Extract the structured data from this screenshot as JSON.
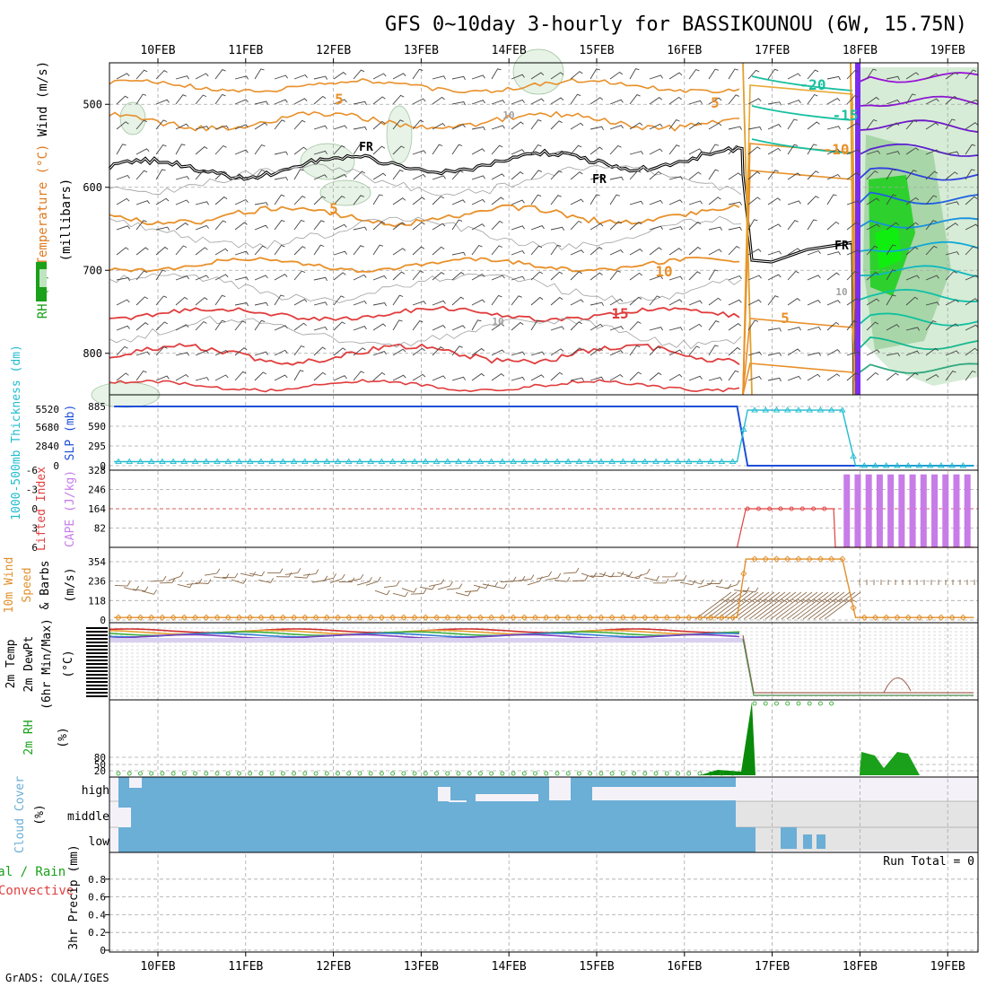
{
  "title": "GFS 0~10day 3-hourly for BASSIKOUNOU (6W, 15.75N)",
  "credit": "GrADS: COLA/IGES",
  "dates": [
    "10FEB",
    "11FEB",
    "12FEB",
    "13FEB",
    "14FEB",
    "15FEB",
    "16FEB",
    "17FEB",
    "18FEB",
    "19FEB"
  ],
  "colors": {
    "background": "#ffffff",
    "grid": "#a8a8a8",
    "cloud": "#6baed6",
    "cloud_clear": "#f4f2f8",
    "cloud_gray": "#e4e4e4",
    "cape": "#c77ce8",
    "slp": "#1e4fd8",
    "thickness": "#22bcd0",
    "lifted_index": "#e04040",
    "wind_speed": "#e0902c",
    "barb": "#8c6a48",
    "rh_green": "#1aa01a",
    "temp_warm": "#e8902a",
    "temp_hot": "#e03c3c",
    "temp_cold": "#18c0a0",
    "freezing": "#000000"
  },
  "chart_data": [
    {
      "type": "line",
      "panel": "upper-air",
      "ylabel_parts": [
        "RH (%)",
        "Temperature (°C)",
        "Wind (m/s)"
      ],
      "ylabel2": "(millibars)",
      "yticks": [
        500,
        600,
        700,
        800
      ],
      "ylim": [
        450,
        850
      ],
      "inverted": true,
      "contour_labels": [
        "FR",
        "FR",
        "FR",
        "5",
        "5",
        "5",
        "5",
        "10",
        "15",
        "-20",
        "-15",
        "-10",
        "10",
        "10",
        "10"
      ]
    },
    {
      "type": "line",
      "panel": "slp-thickness",
      "ylabel_thickness": "1000-500mb Thickness (dm)",
      "ylabel_slp": "SLP (mb)",
      "thickness_ticks": [
        "5520",
        "5680",
        "2840",
        "0"
      ],
      "slp_ticks": [
        "885",
        "590",
        "295",
        "0"
      ],
      "slp_ylim": [
        0,
        885
      ],
      "series": [
        {
          "name": "SLP (mb)",
          "x_days": [
            -0.5,
            6.6,
            6.72,
            9.3
          ],
          "values": [
            885,
            885,
            0,
            0
          ]
        },
        {
          "name": "1000-500mb Thickness (dm)",
          "x_days": [
            -0.5,
            6.6,
            6.72,
            7.8,
            7.95,
            9.3
          ],
          "values": [
            60,
            60,
            830,
            830,
            0,
            0
          ]
        }
      ]
    },
    {
      "type": "bar",
      "panel": "cape-li",
      "ylabel_li": "Lifted Index",
      "ylabel_cape": "CAPE (J/kg)",
      "li_ticks": [
        "-6",
        "-3",
        "0",
        "3",
        "6"
      ],
      "li_ylim": [
        6,
        -6
      ],
      "cape_ticks": [
        "328",
        "246",
        "164",
        "82"
      ],
      "cape_ylim": [
        0,
        328
      ],
      "cape_bars": {
        "start_day": 7.85,
        "end_day": 9.25,
        "step_day": 0.125,
        "value": 310
      },
      "li_series": {
        "x_days": [
          6.6,
          6.7,
          7.7,
          7.72,
          9.3
        ],
        "values": [
          6,
          0,
          0,
          6,
          6
        ]
      }
    },
    {
      "type": "line",
      "panel": "wind10m",
      "ylabel_parts": [
        "10m Wind",
        "Speed",
        "& Barbs",
        "(m/s)"
      ],
      "yticks": [
        "354",
        "236",
        "118",
        "0"
      ],
      "ylim": [
        0,
        354
      ],
      "series": [
        {
          "name": "Speed",
          "x_days": [
            -0.5,
            6.6,
            6.7,
            7.8,
            7.95,
            9.3
          ],
          "values": [
            15,
            15,
            370,
            370,
            15,
            15
          ]
        }
      ]
    },
    {
      "type": "line",
      "panel": "temp2m",
      "ylabel_parts": [
        "2m Temp",
        "2m DewPt",
        "(6hr Min/Max)",
        "(°C)"
      ]
    },
    {
      "type": "area",
      "panel": "rh2m",
      "ylabel_parts": [
        "2m RH",
        "(%)"
      ],
      "yticks": [
        "80",
        "50",
        "20"
      ],
      "ylim": [
        0,
        100
      ]
    },
    {
      "type": "heatmap",
      "panel": "cloud",
      "ylabel_parts": [
        "Cloud Cover",
        "(%)"
      ],
      "levels": [
        "high",
        "middle",
        "low"
      ]
    },
    {
      "type": "line",
      "panel": "precip",
      "ylabel_parts": [
        "Total / Rain",
        "Convective",
        "3hr Precip (mm)"
      ],
      "yticks": [
        "0.8",
        "0.6",
        "0.4",
        "0.2",
        "0"
      ],
      "ylim": [
        0,
        1
      ],
      "run_total_label": "Run Total = 0",
      "values": []
    }
  ]
}
